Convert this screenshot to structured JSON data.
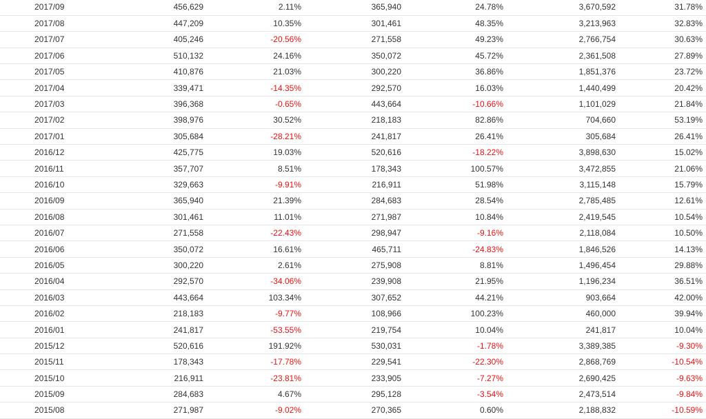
{
  "colors": {
    "negative": "#ee1111",
    "text": "#333333",
    "row_border": "#e6e6e6"
  },
  "rows": [
    [
      "2017/09",
      "456,629",
      "2.11%",
      "365,940",
      "24.78%",
      "3,670,592",
      "31.78%"
    ],
    [
      "2017/08",
      "447,209",
      "10.35%",
      "301,461",
      "48.35%",
      "3,213,963",
      "32.83%"
    ],
    [
      "2017/07",
      "405,246",
      "-20.56%",
      "271,558",
      "49.23%",
      "2,766,754",
      "30.63%"
    ],
    [
      "2017/06",
      "510,132",
      "24.16%",
      "350,072",
      "45.72%",
      "2,361,508",
      "27.89%"
    ],
    [
      "2017/05",
      "410,876",
      "21.03%",
      "300,220",
      "36.86%",
      "1,851,376",
      "23.72%"
    ],
    [
      "2017/04",
      "339,471",
      "-14.35%",
      "292,570",
      "16.03%",
      "1,440,499",
      "20.42%"
    ],
    [
      "2017/03",
      "396,368",
      "-0.65%",
      "443,664",
      "-10.66%",
      "1,101,029",
      "21.84%"
    ],
    [
      "2017/02",
      "398,976",
      "30.52%",
      "218,183",
      "82.86%",
      "704,660",
      "53.19%"
    ],
    [
      "2017/01",
      "305,684",
      "-28.21%",
      "241,817",
      "26.41%",
      "305,684",
      "26.41%"
    ],
    [
      "2016/12",
      "425,775",
      "19.03%",
      "520,616",
      "-18.22%",
      "3,898,630",
      "15.02%"
    ],
    [
      "2016/11",
      "357,707",
      "8.51%",
      "178,343",
      "100.57%",
      "3,472,855",
      "21.06%"
    ],
    [
      "2016/10",
      "329,663",
      "-9.91%",
      "216,911",
      "51.98%",
      "3,115,148",
      "15.79%"
    ],
    [
      "2016/09",
      "365,940",
      "21.39%",
      "284,683",
      "28.54%",
      "2,785,485",
      "12.61%"
    ],
    [
      "2016/08",
      "301,461",
      "11.01%",
      "271,987",
      "10.84%",
      "2,419,545",
      "10.54%"
    ],
    [
      "2016/07",
      "271,558",
      "-22.43%",
      "298,947",
      "-9.16%",
      "2,118,084",
      "10.50%"
    ],
    [
      "2016/06",
      "350,072",
      "16.61%",
      "465,711",
      "-24.83%",
      "1,846,526",
      "14.13%"
    ],
    [
      "2016/05",
      "300,220",
      "2.61%",
      "275,908",
      "8.81%",
      "1,496,454",
      "29.88%"
    ],
    [
      "2016/04",
      "292,570",
      "-34.06%",
      "239,908",
      "21.95%",
      "1,196,234",
      "36.51%"
    ],
    [
      "2016/03",
      "443,664",
      "103.34%",
      "307,652",
      "44.21%",
      "903,664",
      "42.00%"
    ],
    [
      "2016/02",
      "218,183",
      "-9.77%",
      "108,966",
      "100.23%",
      "460,000",
      "39.94%"
    ],
    [
      "2016/01",
      "241,817",
      "-53.55%",
      "219,754",
      "10.04%",
      "241,817",
      "10.04%"
    ],
    [
      "2015/12",
      "520,616",
      "191.92%",
      "530,031",
      "-1.78%",
      "3,389,385",
      "-9.30%"
    ],
    [
      "2015/11",
      "178,343",
      "-17.78%",
      "229,541",
      "-22.30%",
      "2,868,769",
      "-10.54%"
    ],
    [
      "2015/10",
      "216,911",
      "-23.81%",
      "233,905",
      "-7.27%",
      "2,690,425",
      "-9.63%"
    ],
    [
      "2015/09",
      "284,683",
      "4.67%",
      "295,128",
      "-3.54%",
      "2,473,514",
      "-9.84%"
    ],
    [
      "2015/08",
      "271,987",
      "-9.02%",
      "270,365",
      "0.60%",
      "2,188,832",
      "-10.59%"
    ]
  ]
}
